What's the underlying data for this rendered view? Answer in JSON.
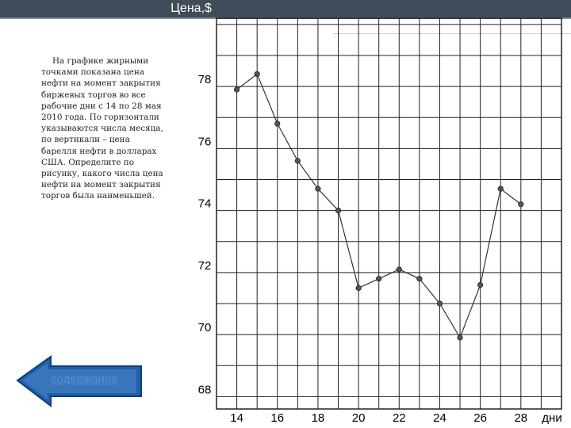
{
  "task_text": "На графике жирными точками показана цена нефти на момент закрытия биржевых торгов во все рабочие дни с 14 по 28 мая 2010 года. По горизонтали указываются числа месяца, по вертикали – цена барелля нефти в долларах США. Определите по рисунку, какого числа цена нефти на момент закрытия торгов была наименьшей.",
  "nav": {
    "contents_label": "содержание"
  },
  "colors": {
    "header_band": "#3f4b59",
    "grid": "#222222",
    "line": "#333333",
    "point": "#555555",
    "link": "#5a8ed1"
  },
  "chart_data": {
    "type": "line",
    "title": "Цена,$",
    "xlabel": "дни",
    "ylabel": "Цена,$",
    "x_ticks": [
      14,
      16,
      18,
      20,
      22,
      24,
      26,
      28
    ],
    "y_ticks": [
      68,
      70,
      72,
      74,
      76,
      78
    ],
    "xlim": [
      13,
      30
    ],
    "ylim": [
      67.6,
      80.2
    ],
    "grid": true,
    "series": [
      {
        "x": [
          14,
          15,
          16,
          17,
          18,
          19,
          20,
          21,
          22,
          23,
          24,
          25,
          26,
          27,
          28
        ],
        "values": [
          77.9,
          78.4,
          76.8,
          75.6,
          74.7,
          74.0,
          71.5,
          71.8,
          72.1,
          71.8,
          71.0,
          69.9,
          71.6,
          74.7,
          74.2
        ]
      }
    ]
  }
}
